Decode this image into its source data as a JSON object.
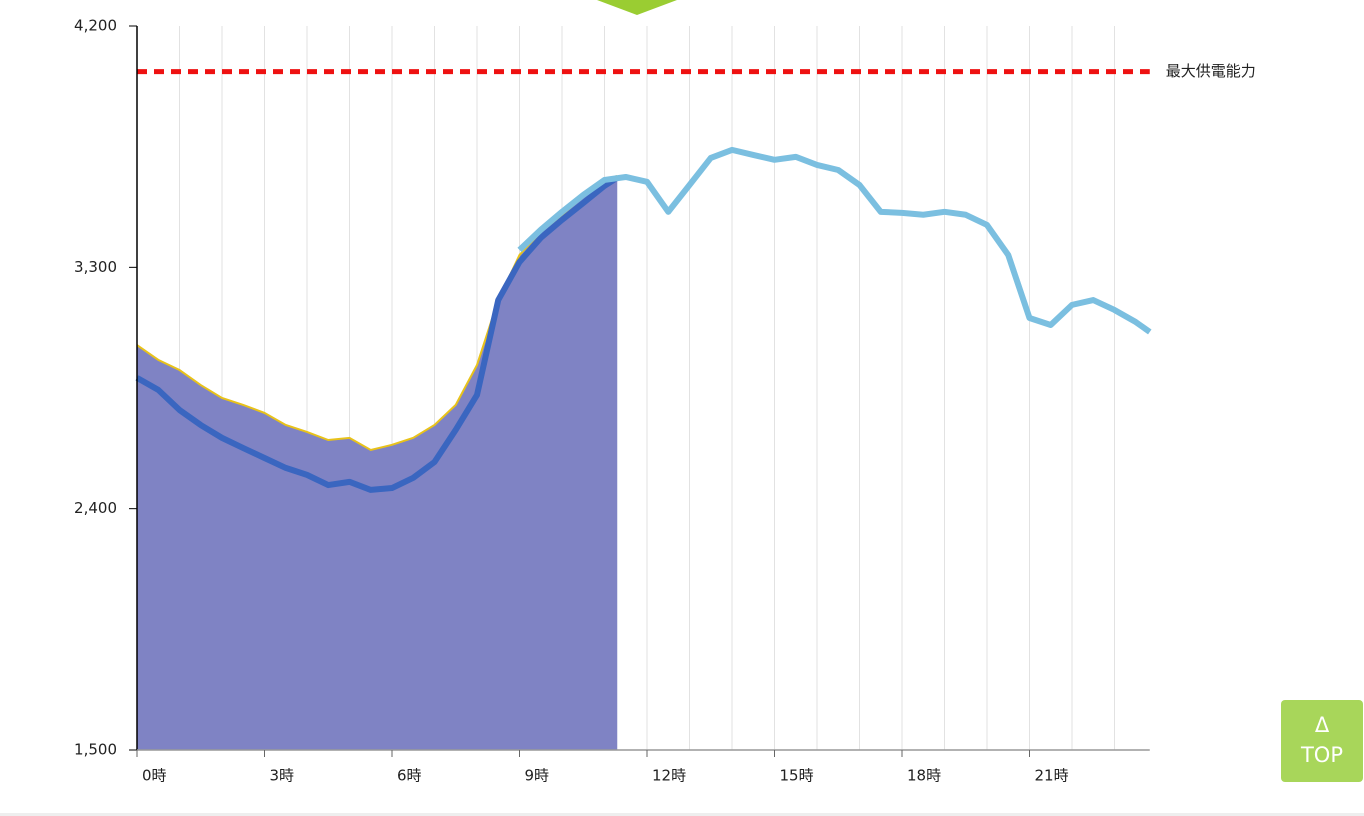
{
  "chart_data": {
    "type": "line",
    "xlim": [
      0,
      24
    ],
    "ylim": [
      1500,
      4200
    ],
    "yticks": [
      {
        "value": 1500,
        "label": "1,500"
      },
      {
        "value": 2400,
        "label": "2,400"
      },
      {
        "value": 3300,
        "label": "3,300"
      },
      {
        "value": 4200,
        "label": "4,200"
      }
    ],
    "xticks": [
      {
        "value": 0,
        "label": "0時"
      },
      {
        "value": 3,
        "label": "3時"
      },
      {
        "value": 6,
        "label": "6時"
      },
      {
        "value": 9,
        "label": "9時"
      },
      {
        "value": 12,
        "label": "12時"
      },
      {
        "value": 15,
        "label": "15時"
      },
      {
        "value": 18,
        "label": "18時"
      },
      {
        "value": 21,
        "label": "21時"
      }
    ],
    "x_grid_interval": 1,
    "reference_line": {
      "value": 4030,
      "label": "最大供電能力",
      "color": "#ee1111"
    },
    "series": [
      {
        "color": "#e8c21a",
        "fill": "#7f83c4",
        "area": true,
        "x": [
          0,
          0.5,
          1,
          1.5,
          2,
          2.5,
          3,
          3.5,
          4,
          4.5,
          5,
          5.5,
          6,
          6.5,
          7,
          7.5,
          8,
          8.5,
          9,
          9.5,
          10,
          10.5,
          11,
          11.3
        ],
        "values": [
          3010,
          2955,
          2917,
          2861,
          2813,
          2787,
          2757,
          2712,
          2686,
          2656,
          2664,
          2619,
          2638,
          2664,
          2712,
          2787,
          2936,
          3178,
          3346,
          3432,
          3496,
          3563,
          3619,
          3641
        ]
      },
      {
        "color": "#3a66c0",
        "x": [
          0,
          0.5,
          1,
          1.5,
          2,
          2.5,
          3,
          3.5,
          4,
          4.5,
          5,
          5.5,
          6,
          6.5,
          7,
          7.5,
          8,
          8.5,
          9,
          9.5,
          10,
          10.5,
          11,
          11.3
        ],
        "values": [
          2888,
          2843,
          2768,
          2712,
          2664,
          2626,
          2589,
          2552,
          2526,
          2488,
          2500,
          2470,
          2477,
          2515,
          2574,
          2694,
          2824,
          3178,
          3320,
          3410,
          3477,
          3540,
          3604,
          3634
        ]
      },
      {
        "color": "#7bbfe0",
        "x": [
          9,
          9.5,
          10,
          10.5,
          11,
          11.5,
          12,
          12.5,
          13,
          13.5,
          14,
          14.5,
          15,
          15.5,
          16,
          16.5,
          17,
          17.5,
          18,
          18.5,
          19,
          19.5,
          20,
          20.5,
          21,
          21.5,
          22,
          22.5,
          23,
          23.5,
          23.83
        ],
        "values": [
          3365,
          3440,
          3507,
          3570,
          3626,
          3637,
          3619,
          3507,
          3607,
          3708,
          3738,
          3719,
          3701,
          3712,
          3682,
          3663,
          3607,
          3507,
          3503,
          3496,
          3507,
          3496,
          3458,
          3346,
          3111,
          3085,
          3160,
          3178,
          3141,
          3096,
          3059
        ]
      }
    ]
  },
  "top_button": {
    "icon": "Δ",
    "label": "TOP"
  }
}
